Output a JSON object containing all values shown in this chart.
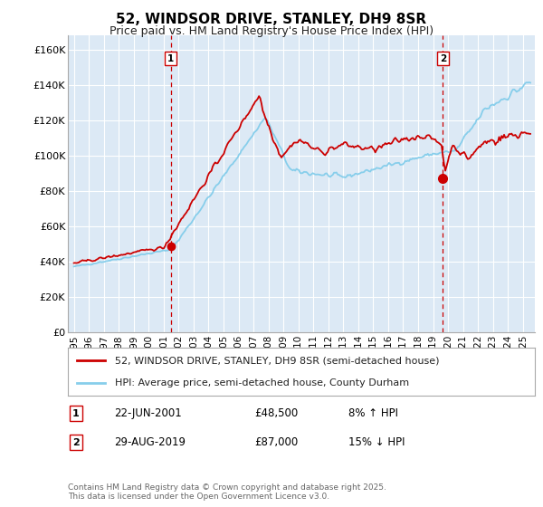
{
  "title": "52, WINDSOR DRIVE, STANLEY, DH9 8SR",
  "subtitle": "Price paid vs. HM Land Registry's House Price Index (HPI)",
  "ylabel_ticks": [
    "£0",
    "£20K",
    "£40K",
    "£60K",
    "£80K",
    "£100K",
    "£120K",
    "£140K",
    "£160K"
  ],
  "ytick_values": [
    0,
    20000,
    40000,
    60000,
    80000,
    100000,
    120000,
    140000,
    160000
  ],
  "ylim": [
    0,
    168000
  ],
  "xlim_start": 1994.6,
  "xlim_end": 2025.8,
  "annotation1": {
    "label": "1",
    "date_x": 2001.47,
    "price": 48500,
    "text": "22-JUN-2001",
    "amount": "£48,500",
    "hpi_text": "8% ↑ HPI"
  },
  "annotation2": {
    "label": "2",
    "date_x": 2019.66,
    "price": 87000,
    "text": "29-AUG-2019",
    "amount": "£87,000",
    "hpi_text": "15% ↓ HPI"
  },
  "legend_line1": "52, WINDSOR DRIVE, STANLEY, DH9 8SR (semi-detached house)",
  "legend_line2": "HPI: Average price, semi-detached house, County Durham",
  "footer": "Contains HM Land Registry data © Crown copyright and database right 2025.\nThis data is licensed under the Open Government Licence v3.0.",
  "color_red": "#cc0000",
  "color_blue": "#87CEEB",
  "bg_color": "#dce9f5",
  "grid_color": "#ffffff",
  "xticks": [
    1995,
    1996,
    1997,
    1998,
    1999,
    2000,
    2001,
    2002,
    2003,
    2004,
    2005,
    2006,
    2007,
    2008,
    2009,
    2010,
    2011,
    2012,
    2013,
    2014,
    2015,
    2016,
    2017,
    2018,
    2019,
    2020,
    2021,
    2022,
    2023,
    2024,
    2025
  ]
}
